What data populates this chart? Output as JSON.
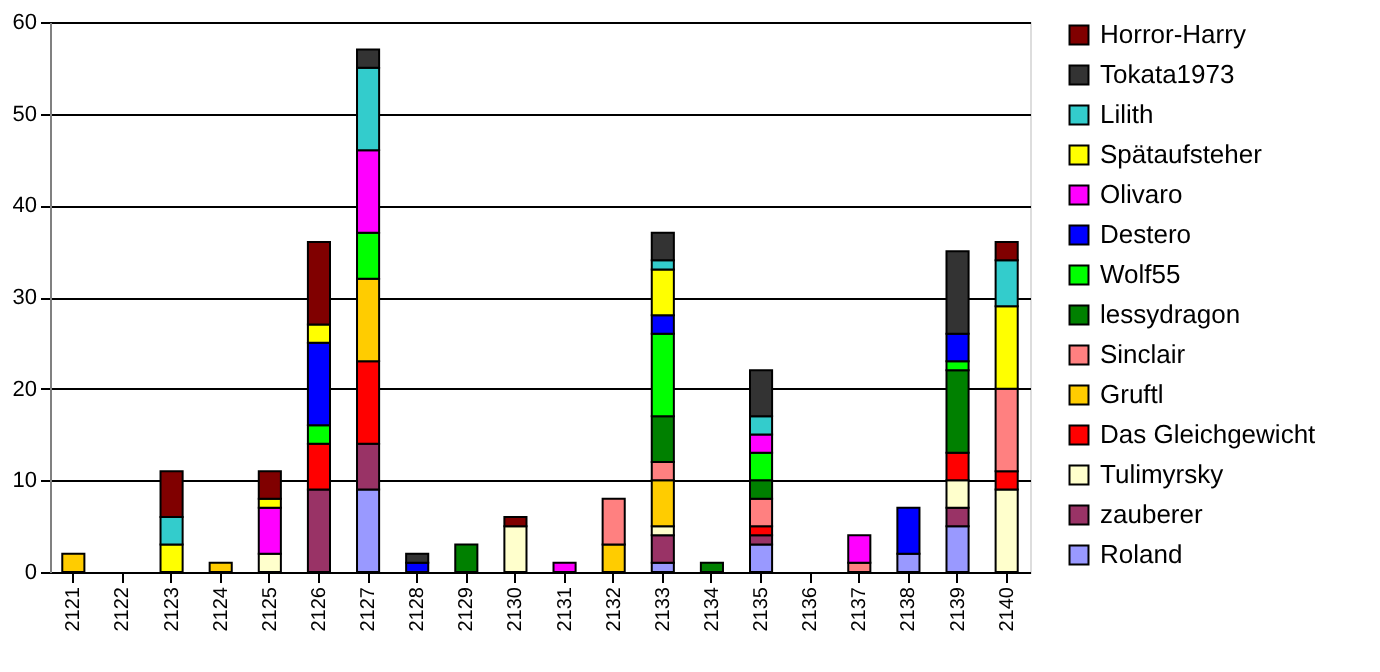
{
  "chart_data": {
    "type": "bar",
    "stacked": true,
    "categories": [
      "2121",
      "2122",
      "2123",
      "2124",
      "2125",
      "2126",
      "2127",
      "2128",
      "2129",
      "2130",
      "2131",
      "2132",
      "2133",
      "2134",
      "2135",
      "2136",
      "2137",
      "2138",
      "2139",
      "2140"
    ],
    "series": [
      {
        "name": "Roland",
        "color": "#9999ff",
        "values": [
          null,
          null,
          null,
          null,
          null,
          null,
          9,
          null,
          null,
          null,
          null,
          null,
          1,
          null,
          3,
          null,
          null,
          2,
          5,
          null
        ]
      },
      {
        "name": "zauberer",
        "color": "#993366",
        "values": [
          null,
          null,
          null,
          null,
          null,
          9,
          5,
          null,
          null,
          null,
          null,
          null,
          3,
          null,
          1,
          null,
          null,
          null,
          2,
          null
        ]
      },
      {
        "name": "Tulimyrsky",
        "color": "#ffffcc",
        "values": [
          null,
          null,
          null,
          null,
          2,
          null,
          null,
          null,
          null,
          5,
          null,
          null,
          1,
          null,
          null,
          null,
          null,
          null,
          3,
          9
        ]
      },
      {
        "name": "Das Gleichgewicht",
        "color": "#ff0000",
        "values": [
          null,
          null,
          null,
          null,
          null,
          5,
          9,
          null,
          null,
          null,
          null,
          null,
          null,
          null,
          1,
          null,
          null,
          null,
          3,
          2
        ]
      },
      {
        "name": "Gruftl",
        "color": "#ffcc00",
        "values": [
          2,
          null,
          null,
          1,
          null,
          null,
          9,
          null,
          null,
          null,
          null,
          3,
          5,
          null,
          null,
          null,
          null,
          null,
          null,
          null
        ]
      },
      {
        "name": "Sinclair",
        "color": "#ff8080",
        "values": [
          null,
          null,
          null,
          null,
          null,
          null,
          null,
          null,
          null,
          null,
          null,
          5,
          2,
          null,
          3,
          null,
          1,
          null,
          null,
          9
        ]
      },
      {
        "name": "lessydragon",
        "color": "#008000",
        "values": [
          null,
          null,
          null,
          null,
          null,
          null,
          null,
          null,
          3,
          null,
          null,
          null,
          5,
          1,
          2,
          null,
          null,
          null,
          9,
          null
        ]
      },
      {
        "name": "Wolf55",
        "color": "#00ff00",
        "values": [
          null,
          null,
          null,
          null,
          null,
          2,
          5,
          null,
          null,
          null,
          null,
          null,
          9,
          null,
          3,
          null,
          null,
          null,
          1,
          null
        ]
      },
      {
        "name": "Destero",
        "color": "#0000ff",
        "values": [
          null,
          null,
          null,
          null,
          null,
          9,
          null,
          1,
          null,
          null,
          null,
          null,
          2,
          null,
          null,
          null,
          null,
          5,
          3,
          null
        ]
      },
      {
        "name": "Olivaro",
        "color": "#ff00ff",
        "values": [
          null,
          null,
          null,
          null,
          5,
          null,
          9,
          null,
          null,
          null,
          1,
          null,
          null,
          null,
          2,
          null,
          3,
          null,
          null,
          null
        ]
      },
      {
        "name": "Spätaufsteher",
        "color": "#ffff00",
        "values": [
          null,
          null,
          3,
          null,
          1,
          2,
          null,
          null,
          null,
          null,
          null,
          null,
          5,
          null,
          null,
          null,
          null,
          null,
          null,
          9
        ]
      },
      {
        "name": "Lilith",
        "color": "#33cccc",
        "values": [
          null,
          null,
          3,
          null,
          null,
          null,
          9,
          null,
          null,
          null,
          null,
          null,
          1,
          null,
          2,
          null,
          null,
          null,
          null,
          5
        ]
      },
      {
        "name": "Tokata1973",
        "color": "#333333",
        "values": [
          null,
          null,
          null,
          null,
          null,
          null,
          2,
          1,
          null,
          null,
          null,
          null,
          3,
          null,
          5,
          null,
          null,
          null,
          9,
          null
        ]
      },
      {
        "name": "Horror-Harry",
        "color": "#800000",
        "values": [
          null,
          null,
          5,
          null,
          3,
          9,
          null,
          null,
          null,
          1,
          null,
          null,
          null,
          null,
          null,
          null,
          null,
          null,
          null,
          2
        ]
      }
    ],
    "ylim": [
      0,
      60
    ],
    "yticks": [
      0,
      10,
      20,
      30,
      40,
      50,
      60
    ],
    "grid": "y",
    "legend": "right"
  }
}
